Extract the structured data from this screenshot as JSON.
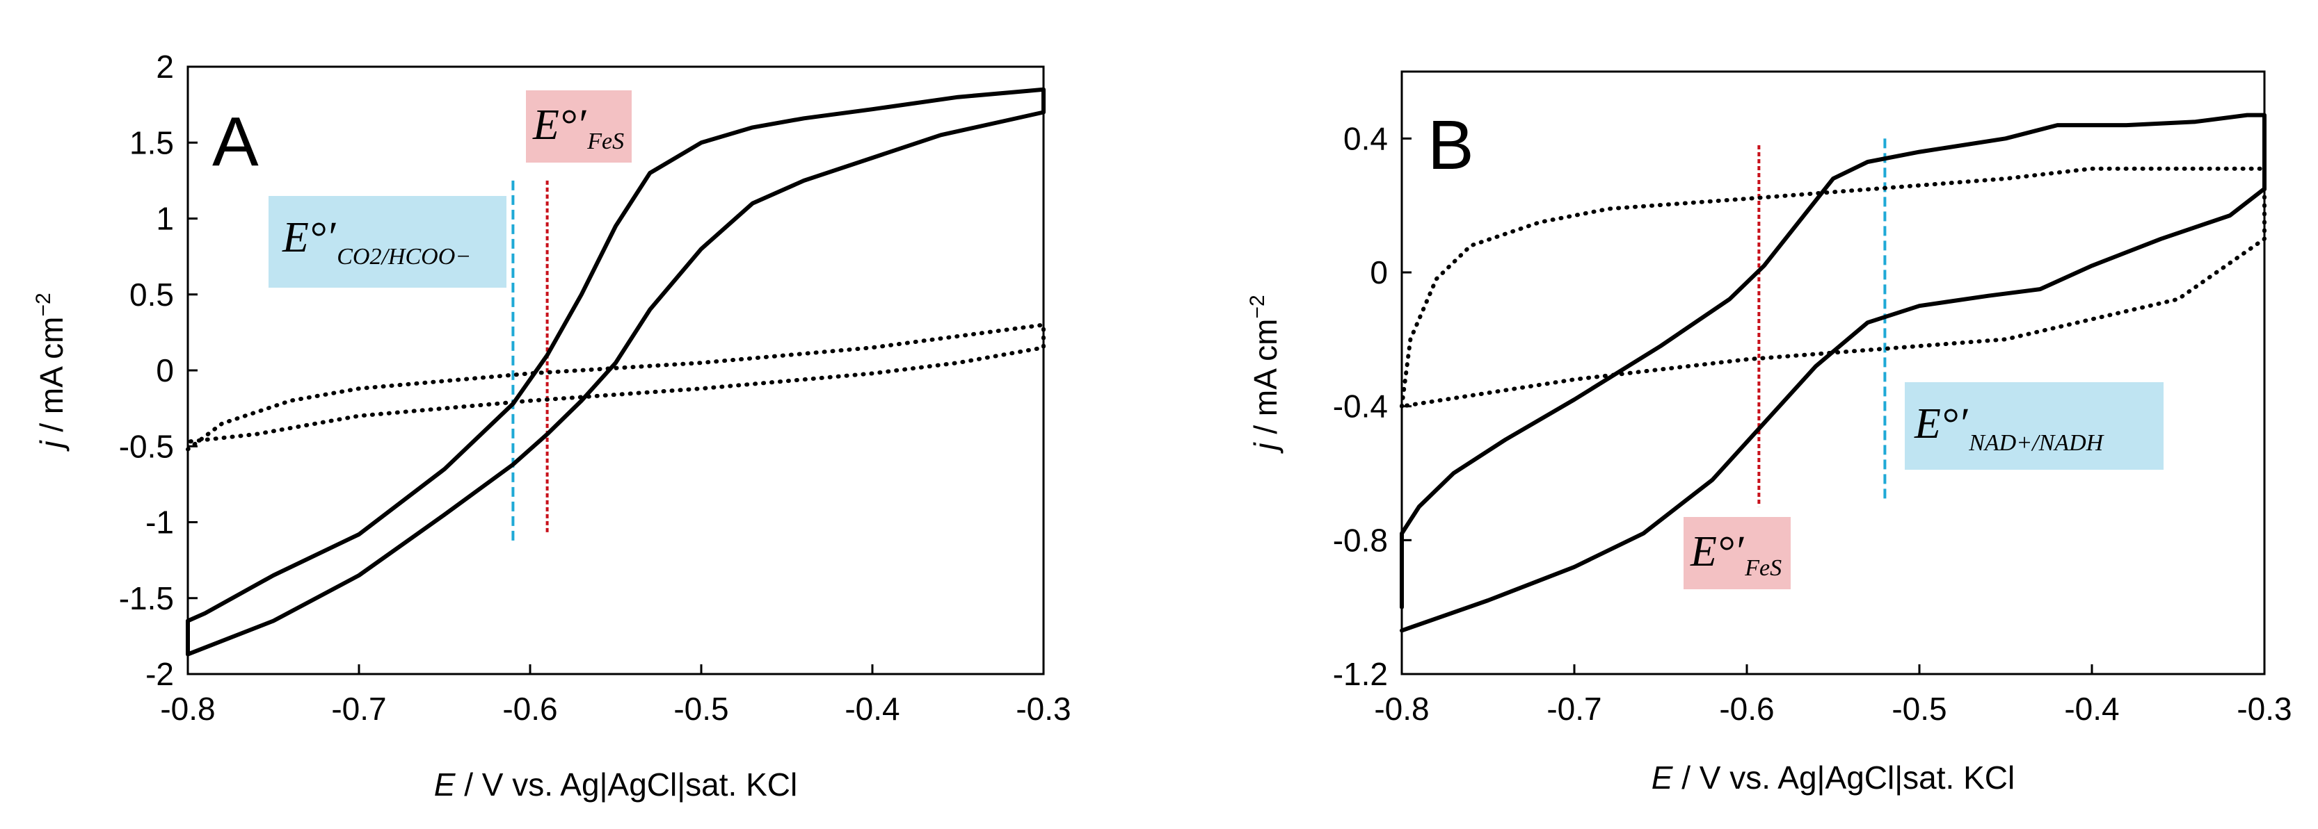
{
  "chart_data": [
    {
      "type": "line",
      "panel_label": "A",
      "xlabel_italic": "E",
      "xlabel_rest": " / V vs. Ag|AgCl|sat. KCl",
      "ylabel_italic": "j",
      "ylabel_rest": " / mA cm",
      "ylabel_sup": "−2",
      "xlim": [
        -0.8,
        -0.3
      ],
      "ylim": [
        -2,
        2
      ],
      "x_ticks": [
        -0.8,
        -0.7,
        -0.6,
        -0.5,
        -0.4,
        -0.3
      ],
      "x_tick_labels": [
        "-0.8",
        "-0.7",
        "-0.6",
        "-0.5",
        "-0.4",
        "-0.3"
      ],
      "y_ticks": [
        -2,
        -1.5,
        -1,
        -0.5,
        0,
        0.5,
        1,
        1.5,
        2
      ],
      "y_tick_labels": [
        "-2",
        "-1.5",
        "-1",
        "-0.5",
        "0",
        "0.5",
        "1",
        "1.5",
        "2"
      ],
      "series": [
        {
          "name": "solid",
          "style": "solid",
          "x": [
            -0.8,
            -0.8,
            -0.79,
            -0.75,
            -0.7,
            -0.65,
            -0.61,
            -0.59,
            -0.57,
            -0.55,
            -0.53,
            -0.5,
            -0.47,
            -0.44,
            -0.4,
            -0.35,
            -0.31,
            -0.3,
            -0.3,
            -0.32,
            -0.36,
            -0.4,
            -0.44,
            -0.47,
            -0.5,
            -0.53,
            -0.55,
            -0.57,
            -0.59,
            -0.61,
            -0.65,
            -0.7,
            -0.75,
            -0.8,
            -0.8
          ],
          "y": [
            -1.87,
            -1.65,
            -1.6,
            -1.35,
            -1.08,
            -0.65,
            -0.22,
            0.1,
            0.5,
            0.95,
            1.3,
            1.5,
            1.6,
            1.66,
            1.72,
            1.8,
            1.84,
            1.85,
            1.7,
            1.65,
            1.55,
            1.4,
            1.25,
            1.1,
            0.8,
            0.4,
            0.05,
            -0.2,
            -0.42,
            -0.62,
            -0.95,
            -1.35,
            -1.65,
            -1.87,
            -1.87
          ]
        },
        {
          "name": "dotted",
          "style": "dotted",
          "x": [
            -0.8,
            -0.78,
            -0.74,
            -0.7,
            -0.6,
            -0.5,
            -0.4,
            -0.3,
            -0.3,
            -0.3,
            -0.35,
            -0.4,
            -0.5,
            -0.6,
            -0.7,
            -0.76,
            -0.8
          ],
          "y": [
            -0.52,
            -0.35,
            -0.2,
            -0.12,
            -0.02,
            0.05,
            0.15,
            0.3,
            0.2,
            0.15,
            0.05,
            -0.02,
            -0.12,
            -0.2,
            -0.3,
            -0.42,
            -0.47
          ]
        }
      ],
      "vlines": [
        {
          "name": "CO2-HCOO-line",
          "x": -0.61,
          "y_range": [
            -1.13,
            1.25
          ],
          "color": "#1fa9d6",
          "dash": "14,7"
        },
        {
          "name": "FeS-line",
          "x": -0.59,
          "y_range": [
            -1.08,
            1.25
          ],
          "color": "#c8111b",
          "dash": "6,4"
        }
      ],
      "annotations": [
        {
          "name": "co2-hcoo-annotation",
          "label": "E°′",
          "sub": "CO2/HCOO−",
          "box_color": "#bfe4f2"
        },
        {
          "name": "fes-annotation",
          "label": "E°′",
          "sub": "FeS",
          "box_color": "#f3c1c3"
        }
      ]
    },
    {
      "type": "line",
      "panel_label": "B",
      "xlabel_italic": "E",
      "xlabel_rest": " / V vs. Ag|AgCl|sat. KCl",
      "ylabel_italic": "j",
      "ylabel_rest": " / mA cm",
      "ylabel_sup": "−2",
      "xlim": [
        -0.8,
        -0.3
      ],
      "ylim": [
        -1.2,
        0.6
      ],
      "x_ticks": [
        -0.8,
        -0.7,
        -0.6,
        -0.5,
        -0.4,
        -0.3
      ],
      "x_tick_labels": [
        "-0.8",
        "-0.7",
        "-0.6",
        "-0.5",
        "-0.4",
        "-0.3"
      ],
      "y_ticks": [
        -1.2,
        -0.8,
        -0.4,
        0,
        0.4
      ],
      "y_tick_labels": [
        "-1.2",
        "-0.8",
        "-0.4",
        "0",
        "0.4"
      ],
      "series": [
        {
          "name": "solid",
          "style": "solid",
          "x": [
            -0.8,
            -0.8,
            -0.79,
            -0.77,
            -0.74,
            -0.7,
            -0.65,
            -0.61,
            -0.59,
            -0.57,
            -0.55,
            -0.53,
            -0.5,
            -0.45,
            -0.42,
            -0.38,
            -0.34,
            -0.31,
            -0.3,
            -0.3,
            -0.32,
            -0.36,
            -0.4,
            -0.43,
            -0.46,
            -0.5,
            -0.53,
            -0.56,
            -0.59,
            -0.62,
            -0.66,
            -0.7,
            -0.75,
            -0.8
          ],
          "y": [
            -1.0,
            -0.78,
            -0.7,
            -0.6,
            -0.5,
            -0.38,
            -0.22,
            -0.08,
            0.02,
            0.15,
            0.28,
            0.33,
            0.36,
            0.4,
            0.44,
            0.44,
            0.45,
            0.47,
            0.47,
            0.25,
            0.17,
            0.1,
            0.02,
            -0.05,
            -0.07,
            -0.1,
            -0.15,
            -0.28,
            -0.45,
            -0.62,
            -0.78,
            -0.88,
            -0.98,
            -1.07
          ]
        },
        {
          "name": "dotted",
          "style": "dotted",
          "x": [
            -0.8,
            -0.795,
            -0.78,
            -0.76,
            -0.72,
            -0.68,
            -0.6,
            -0.5,
            -0.45,
            -0.4,
            -0.35,
            -0.3,
            -0.3,
            -0.3,
            -0.35,
            -0.4,
            -0.45,
            -0.5,
            -0.6,
            -0.7,
            -0.8
          ],
          "y": [
            -0.4,
            -0.2,
            -0.02,
            0.08,
            0.15,
            0.19,
            0.22,
            0.26,
            0.28,
            0.31,
            0.31,
            0.31,
            0.2,
            0.1,
            -0.08,
            -0.14,
            -0.2,
            -0.22,
            -0.26,
            -0.32,
            -0.4
          ]
        }
      ],
      "vlines": [
        {
          "name": "FeS-line",
          "x": -0.593,
          "y_range": [
            -0.7,
            0.38
          ],
          "color": "#c8111b",
          "dash": "6,4"
        },
        {
          "name": "NAD-NADH-line",
          "x": -0.52,
          "y_range": [
            -0.68,
            0.4
          ],
          "color": "#1fa9d6",
          "dash": "14,7"
        }
      ],
      "annotations": [
        {
          "name": "nad-nadh-annotation",
          "label": "E°′",
          "sub": "NAD+/NADH",
          "box_color": "#bfe4f2"
        },
        {
          "name": "fes-annotation",
          "label": "E°′",
          "sub": "FeS",
          "box_color": "#f3c1c3"
        }
      ]
    }
  ]
}
